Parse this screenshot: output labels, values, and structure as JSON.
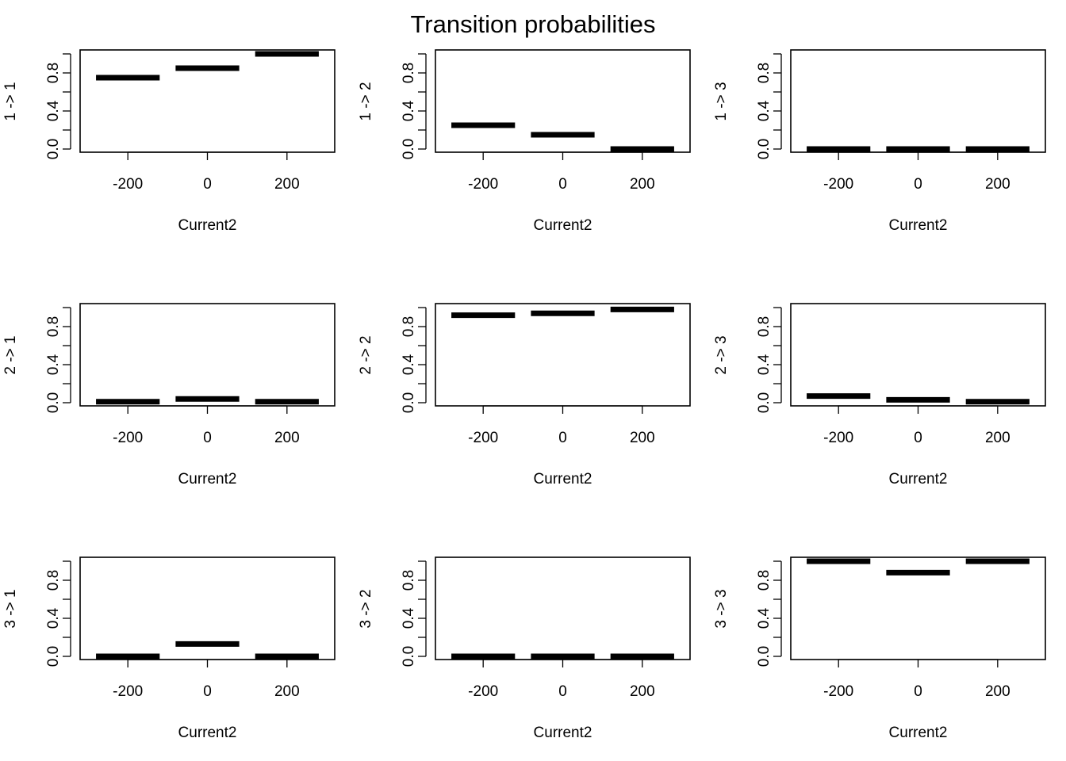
{
  "title": "Transition probabilities",
  "chart_data": {
    "type": "step",
    "title": "Transition probabilities",
    "x_categories": [
      -200,
      0,
      200
    ],
    "x_ticks": [
      "-200",
      "0",
      "200"
    ],
    "y_ticks": [
      "0.0",
      "0.4",
      "0.8"
    ],
    "ylim": [
      0,
      1
    ],
    "grid": false,
    "panels": [
      {
        "ylabel": "1 -> 1",
        "xlabel": "Current2",
        "values": [
          0.75,
          0.85,
          1.0
        ]
      },
      {
        "ylabel": "1 -> 2",
        "xlabel": "Current2",
        "values": [
          0.25,
          0.15,
          0.0
        ]
      },
      {
        "ylabel": "1 -> 3",
        "xlabel": "Current2",
        "values": [
          0.0,
          0.0,
          0.0
        ]
      },
      {
        "ylabel": "2 -> 1",
        "xlabel": "Current2",
        "values": [
          0.01,
          0.04,
          0.01
        ]
      },
      {
        "ylabel": "2 -> 2",
        "xlabel": "Current2",
        "values": [
          0.92,
          0.94,
          0.98
        ]
      },
      {
        "ylabel": "2 -> 3",
        "xlabel": "Current2",
        "values": [
          0.07,
          0.03,
          0.01
        ]
      },
      {
        "ylabel": "3 -> 1",
        "xlabel": "Current2",
        "values": [
          0.0,
          0.13,
          0.0
        ]
      },
      {
        "ylabel": "3 -> 2",
        "xlabel": "Current2",
        "values": [
          0.0,
          0.0,
          0.0
        ]
      },
      {
        "ylabel": "3 -> 3",
        "xlabel": "Current2",
        "values": [
          1.0,
          0.88,
          1.0
        ]
      }
    ]
  }
}
